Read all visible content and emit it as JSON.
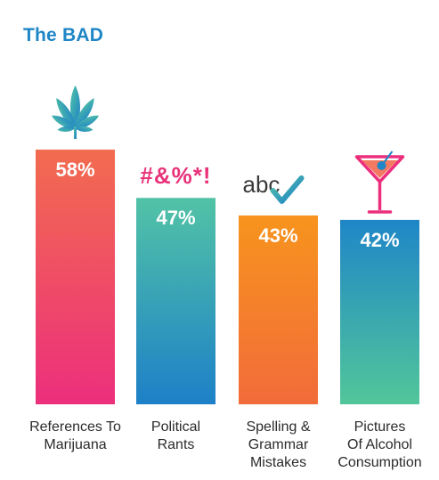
{
  "title": "The BAD",
  "chart_data": {
    "type": "bar",
    "title": "The BAD",
    "categories": [
      [
        "References To",
        "Marijuana"
      ],
      [
        "Political",
        "Rants"
      ],
      [
        "Spelling &",
        "Grammar",
        "Mistakes"
      ],
      [
        "Pictures",
        "Of Alcohol",
        "Consumption"
      ]
    ],
    "values": [
      58,
      47,
      43,
      42
    ],
    "value_labels": [
      "58%",
      "47%",
      "43%",
      "42%"
    ],
    "ylim": [
      0,
      100
    ],
    "grid": false,
    "icons": [
      "cannabis-leaf-icon",
      "curse-symbols-icon",
      "abc-check-icon",
      "martini-icon"
    ],
    "curse_text": "#&%*!",
    "abc_text": "abc",
    "gradients": [
      [
        "#f26c4f",
        "#ec2f7c"
      ],
      [
        "#52c3a6",
        "#1d80c8"
      ],
      [
        "#f7941d",
        "#f26b3a"
      ],
      [
        "#1f86c7",
        "#52c69a"
      ]
    ]
  }
}
